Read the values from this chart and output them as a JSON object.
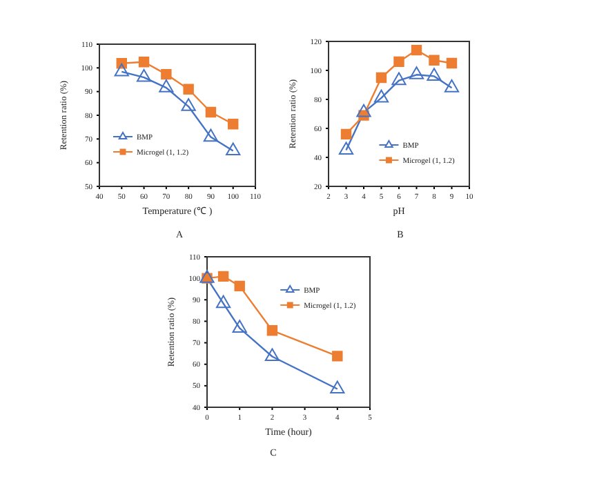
{
  "chart_data": [
    {
      "type": "line",
      "xlabel": "Temperature (℃ )",
      "ylabel": "Retention ratio (%)",
      "annotations": [
        "A"
      ],
      "xlim": [
        40,
        110
      ],
      "xticks": [
        40,
        50,
        60,
        70,
        80,
        90,
        100,
        110
      ],
      "ylim": [
        50,
        110
      ],
      "yticks": [
        50,
        60,
        70,
        80,
        90,
        100,
        110
      ],
      "legend": "bottom left",
      "grid": false,
      "series": [
        {
          "name": "BMP",
          "color": "#4472c4",
          "marker": "triangle",
          "x": [
            50,
            60,
            70,
            80,
            90,
            100
          ],
          "values": [
            98.4,
            96,
            91.6,
            83.7,
            70.8,
            65
          ]
        },
        {
          "name": "Microgel (1, 1.2)",
          "color": "#ed7d31",
          "marker": "square",
          "x": [
            50,
            60,
            70,
            80,
            90,
            100
          ],
          "values": [
            101.9,
            102.5,
            97.3,
            91,
            81.3,
            76.3
          ]
        }
      ]
    },
    {
      "type": "line",
      "xlabel": "pH",
      "ylabel": "Retention ratio (%)",
      "annotations": [
        "B"
      ],
      "xlim": [
        2,
        10
      ],
      "xticks": [
        2,
        3,
        4,
        5,
        6,
        7,
        8,
        9,
        10
      ],
      "ylim": [
        20,
        120
      ],
      "yticks": [
        20,
        40,
        60,
        80,
        100,
        120
      ],
      "legend": "bottom right",
      "grid": false,
      "series": [
        {
          "name": "BMP",
          "color": "#4472c4",
          "marker": "triangle",
          "x": [
            3,
            4,
            5,
            6,
            7,
            8,
            9
          ],
          "values": [
            45,
            71,
            81,
            93,
            97,
            96,
            88
          ]
        },
        {
          "name": "Microgel (1, 1.2)",
          "color": "#ed7d31",
          "marker": "square",
          "x": [
            3,
            4,
            5,
            6,
            7,
            8,
            9
          ],
          "values": [
            56,
            69,
            95,
            106,
            114,
            107,
            105
          ]
        }
      ]
    },
    {
      "type": "line",
      "xlabel": "Time (hour)",
      "ylabel": "Retention ratio (%)",
      "annotations": [
        "C"
      ],
      "xlim": [
        0,
        5
      ],
      "xticks": [
        0,
        1,
        2,
        3,
        4,
        5
      ],
      "ylim": [
        40,
        110
      ],
      "yticks": [
        40,
        50,
        60,
        70,
        80,
        90,
        100,
        110
      ],
      "legend": "top right",
      "grid": false,
      "series": [
        {
          "name": "BMP",
          "color": "#4472c4",
          "marker": "triangle",
          "x": [
            0,
            0.5,
            1,
            2,
            4
          ],
          "values": [
            100,
            88.3,
            76.8,
            63.6,
            48.5
          ]
        },
        {
          "name": "Microgel (1, 1.2)",
          "color": "#ed7d31",
          "marker": "square",
          "x": [
            0,
            0.5,
            1,
            2,
            4
          ],
          "values": [
            100,
            100.9,
            96.4,
            75.7,
            63.8
          ]
        }
      ]
    }
  ]
}
